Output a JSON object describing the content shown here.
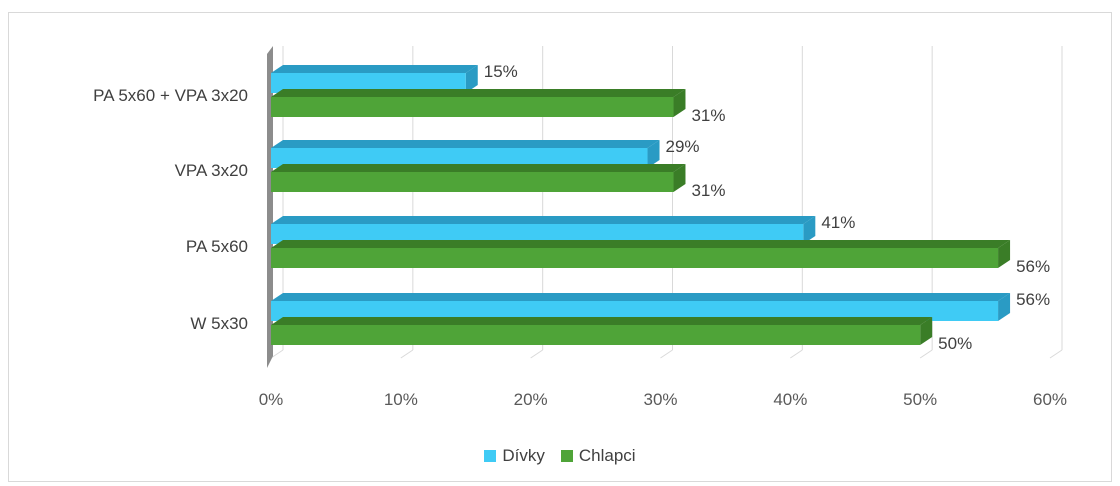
{
  "chart_data": {
    "type": "bar",
    "orientation": "horizontal",
    "style": "3d-clustered",
    "categories": [
      "W 5x30",
      "PA 5x60",
      "VPA 3x20",
      "PA 5x60 + VPA 3x20"
    ],
    "series": [
      {
        "name": "Dívky",
        "values": [
          56,
          41,
          29,
          15
        ],
        "labels": [
          "56%",
          "41%",
          "29%",
          "15%"
        ],
        "color": "#3FCBF5",
        "side_color": "#2A9BC4"
      },
      {
        "name": "Chlapci",
        "values": [
          50,
          56,
          31,
          31
        ],
        "labels": [
          "50%",
          "56%",
          "31%",
          "31%"
        ],
        "color": "#4FA438",
        "side_color": "#3A7D27"
      }
    ],
    "x_ticks": [
      "0%",
      "10%",
      "20%",
      "30%",
      "40%",
      "50%",
      "60%"
    ],
    "xlim": [
      0,
      60
    ],
    "grid": true,
    "legend_position": "bottom"
  }
}
